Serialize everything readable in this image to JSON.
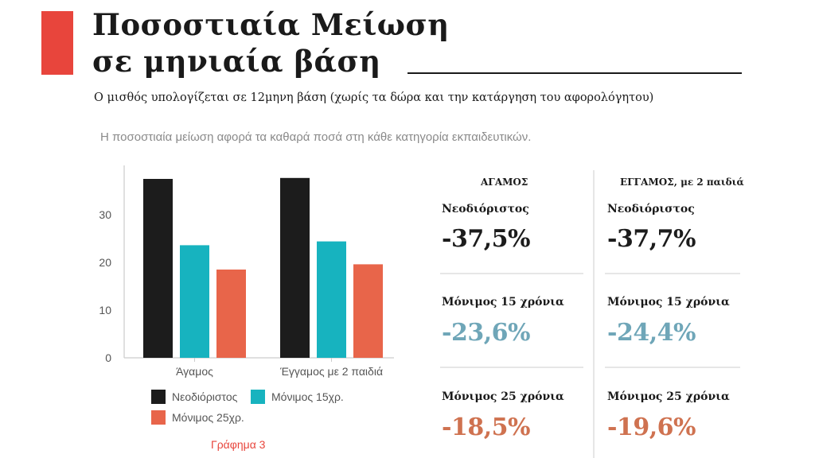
{
  "header": {
    "title_line1": "Ποσοστιαία Μείωση",
    "title_line2": "σε μηνιαία βάση",
    "subtitle": "Ο μισθός υπολογίζεται σε 12μηνη βάση (χωρίς τα δώρα και την κατάργηση του αφορολόγητου)",
    "note": "Η ποσοστιαία μείωση αφορά τα καθαρά ποσά στη κάθε κατηγορία εκπαιδευτικών."
  },
  "colors": {
    "accent": "#e8453c",
    "neodioristos": "#1c1c1c",
    "monimos15": "#17b3bf",
    "monimos25": "#e8654a",
    "teal_text": "#6fa6b8",
    "orange_text": "#cf7250"
  },
  "chart_data": {
    "type": "bar",
    "categories": [
      "Άγαμος",
      "Έγγαμος με 2 παιδιά"
    ],
    "series": [
      {
        "name": "Νεοδιόριστος",
        "values": [
          37.5,
          37.7
        ]
      },
      {
        "name": "Μόνιμος 15χρ.",
        "values": [
          23.6,
          24.4
        ]
      },
      {
        "name": "Μόνιμος 25χρ.",
        "values": [
          18.5,
          19.6
        ]
      }
    ],
    "yticks": [
      "0",
      "10",
      "20",
      "30"
    ],
    "ylim": [
      0,
      40
    ],
    "legend_position": "bottom",
    "caption": "Γράφημα 3"
  },
  "table": {
    "headers": [
      "ΑΓΑΜΟΣ",
      "ΕΓΓΑΜΟΣ, με 2 παιδιά"
    ],
    "rows": [
      {
        "label": "Νεοδιόριστος",
        "values": [
          "-37,5%",
          "-37,7%"
        ]
      },
      {
        "label": "Μόνιμος 15 χρόνια",
        "values": [
          "-23,6%",
          "-24,4%"
        ]
      },
      {
        "label": "Μόνιμος 25 χρόνια",
        "values": [
          "-18,5%",
          "-19,6%"
        ]
      }
    ]
  }
}
